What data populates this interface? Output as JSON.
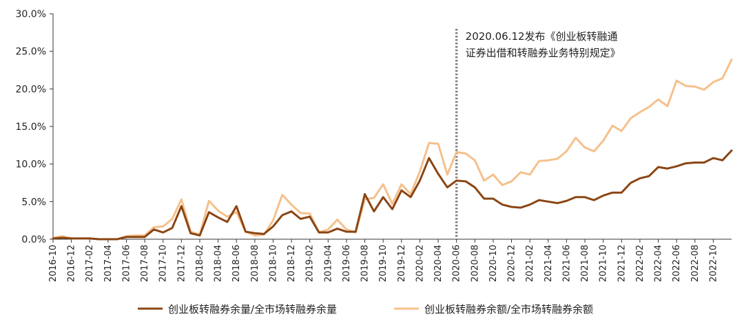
{
  "chart_data": {
    "type": "line",
    "title": "",
    "xlabel": "",
    "ylabel": "",
    "ylim": [
      0,
      30
    ],
    "y_ticks": [
      "0.0%",
      "5.0%",
      "10.0%",
      "15.0%",
      "20.0%",
      "25.0%",
      "30.0%"
    ],
    "x": [
      "2016-10",
      "2016-11",
      "2016-12",
      "2017-01",
      "2017-02",
      "2017-03",
      "2017-04",
      "2017-05",
      "2017-06",
      "2017-07",
      "2017-08",
      "2017-09",
      "2017-10",
      "2017-11",
      "2017-12",
      "2018-01",
      "2018-02",
      "2018-03",
      "2018-04",
      "2018-05",
      "2018-06",
      "2018-07",
      "2018-08",
      "2018-09",
      "2018-10",
      "2018-11",
      "2018-12",
      "2019-01",
      "2019-02",
      "2019-03",
      "2019-04",
      "2019-05",
      "2019-06",
      "2019-07",
      "2019-08",
      "2019-09",
      "2019-10",
      "2019-11",
      "2019-12",
      "2020-01",
      "2020-02",
      "2020-03",
      "2020-04",
      "2020-05",
      "2020-06",
      "2020-07",
      "2020-08",
      "2020-09",
      "2020-10",
      "2020-11",
      "2020-12",
      "2021-01",
      "2021-02",
      "2021-03",
      "2021-04",
      "2021-05",
      "2021-06",
      "2021-07",
      "2021-08",
      "2021-09",
      "2021-10",
      "2021-11",
      "2021-12",
      "2022-01",
      "2022-02",
      "2022-03",
      "2022-04",
      "2022-05",
      "2022-06",
      "2022-07",
      "2022-08",
      "2022-09",
      "2022-10",
      "2022-11",
      "2022-12"
    ],
    "x_tick_labels": [
      "2016-10",
      "2016-12",
      "2017-02",
      "2017-04",
      "2017-06",
      "2017-08",
      "2017-10",
      "2017-12",
      "2018-02",
      "2018-04",
      "2018-06",
      "2018-08",
      "2018-10",
      "2018-12",
      "2019-02",
      "2019-04",
      "2019-06",
      "2019-08",
      "2019-10",
      "2019-12",
      "2020-02",
      "2020-04",
      "2020-06",
      "2020-08",
      "2020-10",
      "2020-12",
      "2021-02",
      "2021-04",
      "2021-06",
      "2021-08",
      "2021-10",
      "2021-12",
      "2022-02",
      "2022-04",
      "2022-06",
      "2022-08",
      "2022-10"
    ],
    "series": [
      {
        "name": "创业板转融券余量/全市场转融券余量",
        "color": "#8B4513",
        "values": [
          0.1,
          0.2,
          0.1,
          0.1,
          0.1,
          0.0,
          0.0,
          0.0,
          0.3,
          0.3,
          0.3,
          1.3,
          0.9,
          1.5,
          4.4,
          0.8,
          0.5,
          3.6,
          2.9,
          2.3,
          4.4,
          1.0,
          0.8,
          0.7,
          1.7,
          3.2,
          3.7,
          2.7,
          3.0,
          0.9,
          0.9,
          1.4,
          1.0,
          1.0,
          6.0,
          3.7,
          5.6,
          4.0,
          6.5,
          5.6,
          7.8,
          10.8,
          8.7,
          6.9,
          7.8,
          7.7,
          6.9,
          5.4,
          5.4,
          4.6,
          4.3,
          4.2,
          4.6,
          5.2,
          5.0,
          4.8,
          5.1,
          5.6,
          5.6,
          5.2,
          5.8,
          6.2,
          6.2,
          7.5,
          8.1,
          8.4,
          9.6,
          9.4,
          9.7,
          10.1,
          10.2,
          10.2,
          10.8,
          10.5,
          11.8
        ]
      },
      {
        "name": "创业板转融券余额/全市场转融券余额",
        "color": "#F5C08C",
        "values": [
          0.2,
          0.4,
          0.1,
          0.1,
          0.1,
          0.0,
          0.0,
          0.0,
          0.4,
          0.5,
          0.5,
          1.6,
          1.7,
          2.7,
          5.3,
          1.0,
          0.6,
          5.1,
          3.8,
          3.0,
          3.6,
          1.0,
          0.5,
          0.6,
          2.5,
          5.9,
          4.6,
          3.5,
          3.4,
          0.9,
          1.3,
          2.6,
          1.3,
          0.9,
          5.3,
          5.5,
          7.3,
          4.7,
          7.3,
          6.0,
          9.0,
          12.8,
          12.7,
          8.6,
          11.6,
          11.4,
          10.5,
          7.8,
          8.6,
          7.2,
          7.7,
          8.9,
          8.6,
          10.4,
          10.5,
          10.7,
          11.7,
          13.5,
          12.2,
          11.7,
          13.1,
          15.1,
          14.4,
          16.1,
          16.9,
          17.6,
          18.6,
          17.7,
          21.1,
          20.4,
          20.3,
          19.9,
          20.9,
          21.4,
          23.9
        ]
      }
    ],
    "annotation": {
      "at_x": "2020-06",
      "line1": "2020.06.12发布《创业板转融通",
      "line2": "证券出借和转融券业务特别规定》"
    },
    "grid": false,
    "legend_position": "bottom"
  }
}
